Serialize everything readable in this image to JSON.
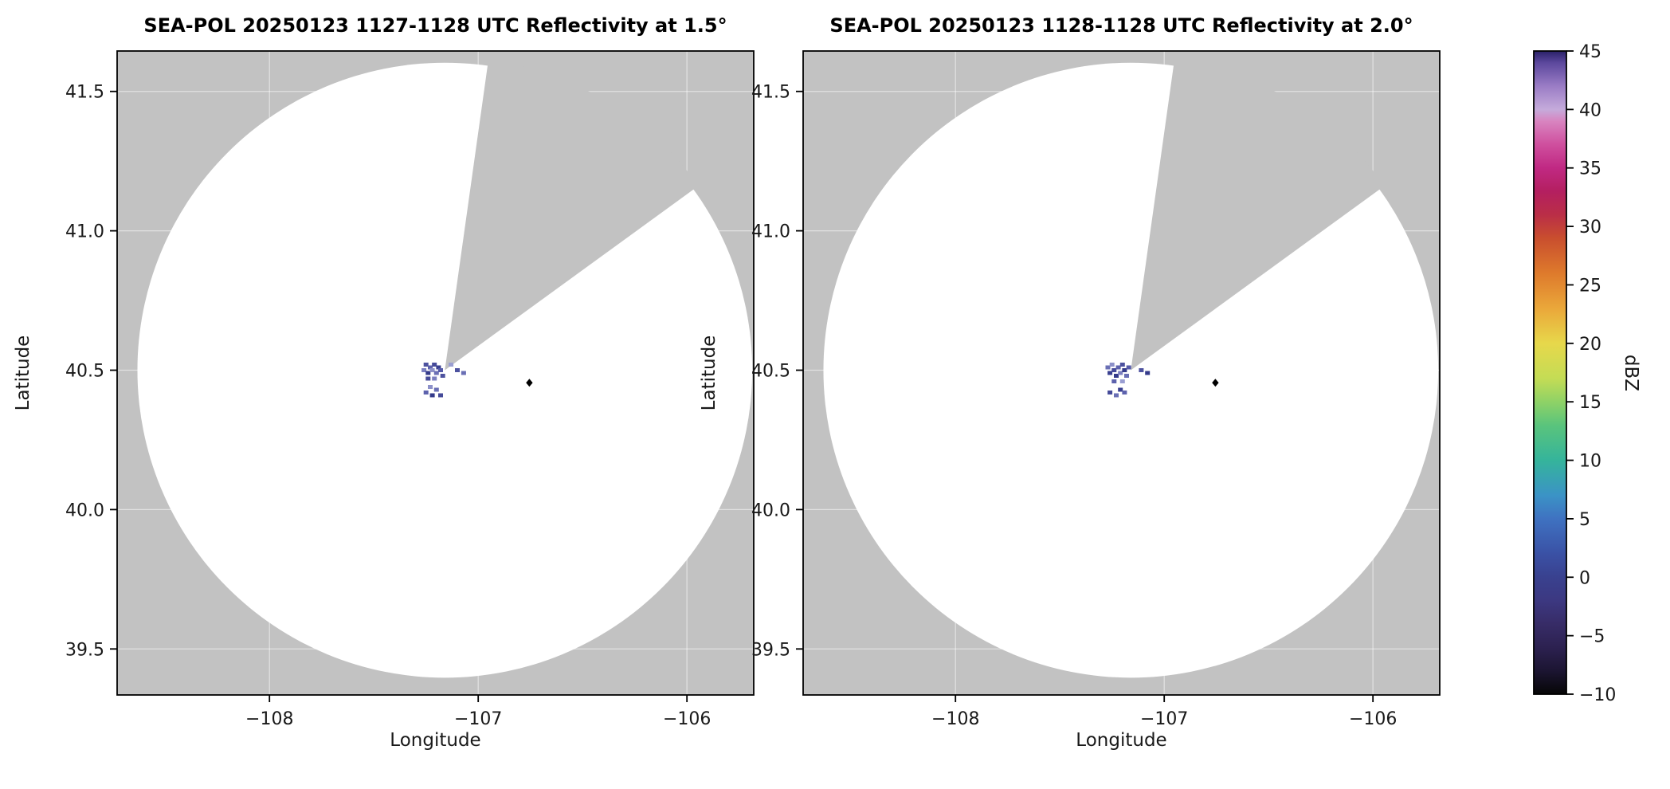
{
  "chart_data": {
    "type": "heatmap",
    "subtype": "radar-ppi-reflectivity",
    "colors": {
      "panel_bg": "#c2c2c2",
      "coverage_fill": "#ffffff",
      "axis": "#000000"
    },
    "panels": [
      {
        "title": "SEA-POL 20250123 1127-1128 UTC Reflectivity at 1.5°",
        "xlabel": "Longitude",
        "ylabel": "Latitude",
        "xlim": [
          -108.73,
          -105.68
        ],
        "ylim": [
          39.335,
          41.645
        ],
        "xticks": [
          -108,
          -107,
          -106
        ],
        "xtick_labels": [
          "−108",
          "−107",
          "−106"
        ],
        "yticks": [
          39.5,
          40.0,
          40.5,
          41.0,
          41.5
        ],
        "ytick_labels": [
          "39.5",
          "40.0",
          "40.5",
          "41.0",
          "41.5"
        ],
        "radar_center": [
          -107.16,
          40.5
        ],
        "coverage_radius_deg": 1.103,
        "missing_sector_azimuth_deg": [
          8,
          54
        ],
        "radar_site_marker": [
          -106.755,
          40.455
        ],
        "echo_dbz_range_approx": [
          -3,
          4
        ],
        "echoes": [
          [
            -107.26,
            40.5,
            "#7b7fc0"
          ],
          [
            -107.25,
            40.52,
            "#4d529f"
          ],
          [
            -107.24,
            40.49,
            "#343a8a"
          ],
          [
            -107.23,
            40.51,
            "#5d62ad"
          ],
          [
            -107.22,
            40.5,
            "#8d91c9"
          ],
          [
            -107.21,
            40.52,
            "#454a99"
          ],
          [
            -107.2,
            40.49,
            "#6a6fb5"
          ],
          [
            -107.19,
            40.51,
            "#393f90"
          ],
          [
            -107.18,
            40.5,
            "#555aa9"
          ],
          [
            -107.24,
            40.47,
            "#454a99"
          ],
          [
            -107.21,
            40.47,
            "#7b7fc0"
          ],
          [
            -107.17,
            40.48,
            "#4d529f"
          ],
          [
            -107.25,
            40.42,
            "#5d62ad"
          ],
          [
            -107.22,
            40.41,
            "#343a8a"
          ],
          [
            -107.2,
            40.43,
            "#6a6fb5"
          ],
          [
            -107.18,
            40.41,
            "#454a99"
          ],
          [
            -107.23,
            40.44,
            "#8d91c9"
          ],
          [
            -107.1,
            40.5,
            "#4d529f"
          ],
          [
            -107.07,
            40.49,
            "#6a6fb5"
          ],
          [
            -107.13,
            40.52,
            "#9a9ed2"
          ]
        ]
      },
      {
        "title": "SEA-POL 20250123 1128-1128 UTC Reflectivity at 2.0°",
        "xlabel": "Longitude",
        "ylabel": "Latitude",
        "xlim": [
          -108.73,
          -105.68
        ],
        "ylim": [
          39.335,
          41.645
        ],
        "xticks": [
          -108,
          -107,
          -106
        ],
        "xtick_labels": [
          "−108",
          "−107",
          "−106"
        ],
        "yticks": [
          39.5,
          40.0,
          40.5,
          41.0,
          41.5
        ],
        "ytick_labels": [
          "39.5",
          "40.0",
          "40.5",
          "41.0",
          "41.5"
        ],
        "radar_center": [
          -107.16,
          40.5
        ],
        "coverage_radius_deg": 1.103,
        "missing_sector_azimuth_deg": [
          8,
          54
        ],
        "radar_site_marker": [
          -106.755,
          40.455
        ],
        "echo_dbz_range_approx": [
          -3,
          4
        ],
        "echoes": [
          [
            -107.27,
            40.51,
            "#6a6fb5"
          ],
          [
            -107.26,
            40.49,
            "#393f90"
          ],
          [
            -107.25,
            40.52,
            "#8d91c9"
          ],
          [
            -107.24,
            40.5,
            "#454a99"
          ],
          [
            -107.23,
            40.48,
            "#343a8a"
          ],
          [
            -107.22,
            40.51,
            "#5d62ad"
          ],
          [
            -107.21,
            40.49,
            "#7b7fc0"
          ],
          [
            -107.2,
            40.52,
            "#4d529f"
          ],
          [
            -107.19,
            40.5,
            "#343a8a"
          ],
          [
            -107.18,
            40.48,
            "#6a6fb5"
          ],
          [
            -107.17,
            40.51,
            "#555aa9"
          ],
          [
            -107.24,
            40.46,
            "#5d62ad"
          ],
          [
            -107.2,
            40.46,
            "#9a9ed2"
          ],
          [
            -107.26,
            40.42,
            "#454a99"
          ],
          [
            -107.23,
            40.41,
            "#6a6fb5"
          ],
          [
            -107.21,
            40.43,
            "#393f90"
          ],
          [
            -107.19,
            40.42,
            "#5d62ad"
          ],
          [
            -107.11,
            40.5,
            "#4d529f"
          ],
          [
            -107.08,
            40.49,
            "#343a8a"
          ]
        ]
      }
    ],
    "colorbar": {
      "label": "dBZ",
      "min": -10,
      "max": 45,
      "ticks": [
        45,
        40,
        35,
        30,
        25,
        20,
        15,
        10,
        5,
        0,
        -5,
        -10
      ],
      "tick_labels": [
        "45",
        "40",
        "35",
        "30",
        "25",
        "20",
        "15",
        "10",
        "5",
        "0",
        "−5",
        "−10"
      ],
      "stops": [
        [
          -10,
          "#060606"
        ],
        [
          -8,
          "#1c1532"
        ],
        [
          -6,
          "#2c2150"
        ],
        [
          -4,
          "#372c67"
        ],
        [
          -2,
          "#3c3881"
        ],
        [
          0,
          "#39418f"
        ],
        [
          2,
          "#3a51a5"
        ],
        [
          5,
          "#3f72c1"
        ],
        [
          7,
          "#3b93c6"
        ],
        [
          10,
          "#35b49b"
        ],
        [
          13,
          "#5ac47c"
        ],
        [
          15,
          "#8fd266"
        ],
        [
          17,
          "#c4dc55"
        ],
        [
          20,
          "#e7d84b"
        ],
        [
          23,
          "#eaa73a"
        ],
        [
          26,
          "#de7a2c"
        ],
        [
          29,
          "#c94e2e"
        ],
        [
          31,
          "#ba2e47"
        ],
        [
          33,
          "#b41f60"
        ],
        [
          35,
          "#c02983"
        ],
        [
          37,
          "#cf4f9e"
        ],
        [
          39,
          "#d884c0"
        ],
        [
          40,
          "#c5abdb"
        ],
        [
          42,
          "#9a7cc5"
        ],
        [
          44,
          "#5c489d"
        ],
        [
          45,
          "#2a2168"
        ]
      ]
    }
  }
}
